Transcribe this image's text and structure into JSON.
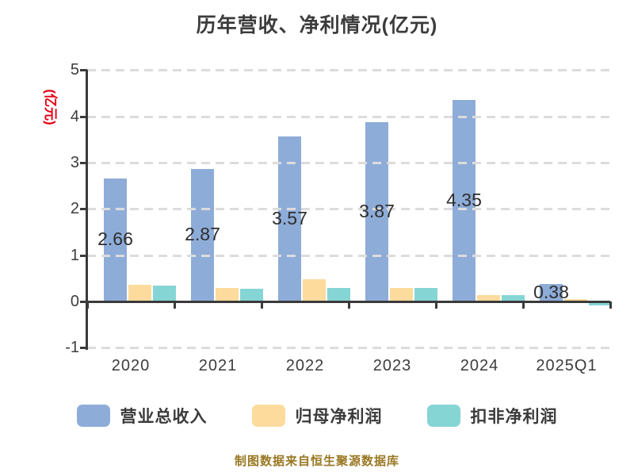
{
  "title": "历年营收、净利情况(亿元)",
  "ylabel": "(亿元)",
  "footer": "制图数据来自恒生聚源数据库",
  "colors": {
    "title_text": "#3c3c3c",
    "y_axis_title": "#e60012",
    "footer_text": "#997722",
    "axis": "#3a3a3a",
    "gridline": "#dcdcdc"
  },
  "chart_data": {
    "type": "bar",
    "title": "历年营收、净利情况(亿元)",
    "ylabel": "(亿元)",
    "categories": [
      "2020",
      "2021",
      "2022",
      "2023",
      "2024",
      "2025Q1"
    ],
    "series": [
      {
        "name": "营业总收入",
        "color": "#8EACD8",
        "values": [
          2.66,
          2.87,
          3.57,
          3.87,
          4.35,
          0.38
        ],
        "labels": [
          "2.66",
          "2.87",
          "3.57",
          "3.87",
          "4.35",
          "0.38"
        ]
      },
      {
        "name": "归母净利润",
        "color": "#FCDB9D",
        "values": [
          0.36,
          0.29,
          0.48,
          0.3,
          0.14,
          0.02
        ]
      },
      {
        "name": "扣非净利润",
        "color": "#85D5D4",
        "values": [
          0.34,
          0.28,
          0.29,
          0.3,
          0.13,
          -0.02
        ]
      }
    ],
    "ylim": [
      -1,
      5
    ],
    "yticks": [
      5,
      4,
      3,
      2,
      1,
      0,
      -1
    ],
    "grid": "horizontal-dashed",
    "legend_position": "bottom"
  }
}
